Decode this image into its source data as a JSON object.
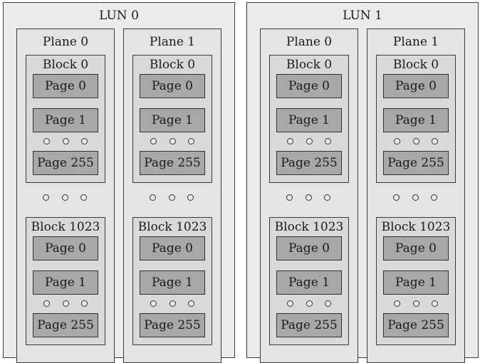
{
  "luns": [
    {
      "label": "LUN 0",
      "planes": [
        {
          "label": "Plane 0",
          "blocks": [
            {
              "label": "Block 0",
              "pages": [
                "Page 0",
                "Page 1",
                "Page 255"
              ]
            },
            {
              "label": "Block 1023",
              "pages": [
                "Page 0",
                "Page 1",
                "Page 255"
              ]
            }
          ]
        },
        {
          "label": "Plane 1",
          "blocks": [
            {
              "label": "Block 0",
              "pages": [
                "Page 0",
                "Page 1",
                "Page 255"
              ]
            },
            {
              "label": "Block 1023",
              "pages": [
                "Page 0",
                "Page 1",
                "Page 255"
              ]
            }
          ]
        }
      ]
    },
    {
      "label": "LUN 1",
      "planes": [
        {
          "label": "Plane 0",
          "blocks": [
            {
              "label": "Block 0",
              "pages": [
                "Page 0",
                "Page 1",
                "Page 255"
              ]
            },
            {
              "label": "Block 1023",
              "pages": [
                "Page 0",
                "Page 1",
                "Page 255"
              ]
            }
          ]
        },
        {
          "label": "Plane 1",
          "blocks": [
            {
              "label": "Block 0",
              "pages": [
                "Page 0",
                "Page 1",
                "Page 255"
              ]
            },
            {
              "label": "Block 1023",
              "pages": [
                "Page 0",
                "Page 1",
                "Page 255"
              ]
            }
          ]
        }
      ]
    }
  ]
}
